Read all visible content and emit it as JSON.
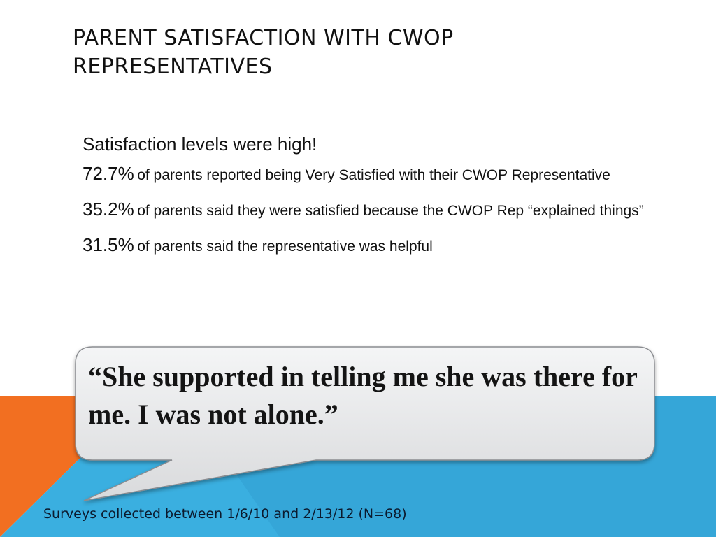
{
  "slide": {
    "title": "PARENT SATISFACTION WITH CWOP REPRESENTATIVES",
    "intro": "Satisfaction levels were high!",
    "stats": [
      {
        "value": "72.7%",
        "text": "of parents reported being Very Satisfied with their CWOP Representative"
      },
      {
        "value": "35.2%",
        "text": "of parents said they were satisfied because the CWOP Rep “explained things”"
      },
      {
        "value": "31.5%",
        "text": "of parents said the representative was helpful"
      }
    ],
    "quote": "“She supported in telling me she was there for me.  I was not alone.”",
    "footer": "Surveys collected between 1/6/10 and 2/13/12 (N=68)"
  },
  "colors": {
    "accent_orange": "#f26f21",
    "accent_blue": "#3aafe0",
    "accent_blue_dark": "#2b93c6",
    "bubble_fill": "#e9eaec",
    "bubble_stroke": "#8a8c90"
  }
}
